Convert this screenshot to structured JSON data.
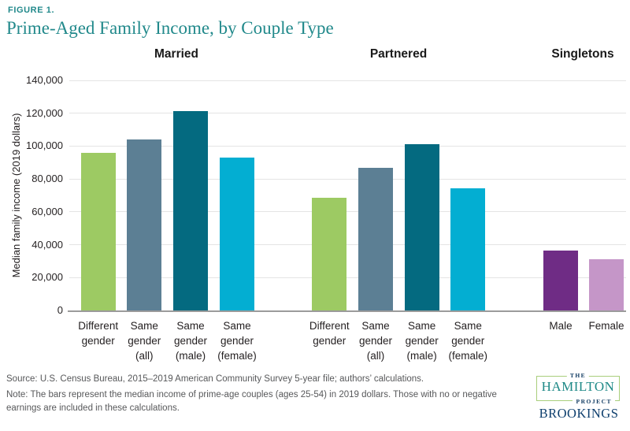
{
  "figure_label": "FIGURE 1.",
  "title": "Prime-Aged Family Income, by Couple Type",
  "chart_data": {
    "type": "bar",
    "title": "Prime-Aged Family Income, by Couple Type",
    "xlabel": "",
    "ylabel": "Median family income (2019 dollars)",
    "ylim": [
      0,
      140000
    ],
    "ytick_step": 20000,
    "ytick_labels": [
      "0",
      "20,000",
      "40,000",
      "60,000",
      "80,000",
      "100,000",
      "120,000",
      "140,000"
    ],
    "grid": "horizontal",
    "legend": "none",
    "groups": [
      {
        "name": "Married",
        "bars": [
          {
            "label": "Different\ngender",
            "value": 96000,
            "color": "#9dca63"
          },
          {
            "label": "Same\ngender\n(all)",
            "value": 104000,
            "color": "#5c7f94"
          },
          {
            "label": "Same\ngender\n(male)",
            "value": 121500,
            "color": "#046a80"
          },
          {
            "label": "Same\ngender\n(female)",
            "value": 93000,
            "color": "#03aed2"
          }
        ]
      },
      {
        "name": "Partnered",
        "bars": [
          {
            "label": "Different\ngender",
            "value": 68500,
            "color": "#9dca63"
          },
          {
            "label": "Same\ngender\n(all)",
            "value": 87000,
            "color": "#5c7f94"
          },
          {
            "label": "Same\ngender\n(male)",
            "value": 101000,
            "color": "#046a80"
          },
          {
            "label": "Same\ngender\n(female)",
            "value": 74500,
            "color": "#03aed2"
          }
        ]
      },
      {
        "name": "Singletons",
        "bars": [
          {
            "label": "Male",
            "value": 36500,
            "color": "#6f2c85"
          },
          {
            "label": "Female",
            "value": 31000,
            "color": "#c596c8"
          }
        ]
      }
    ]
  },
  "footer": {
    "source": "Source: U.S. Census Bureau, 2015–2019 American Community Survey 5-year file; authors’ calculations.",
    "note": "Note: The bars represent the median income of prime-age couples (ages 25-54) in 2019 dollars. Those with no or negative earnings are included in these calculations."
  },
  "logo": {
    "the": "THE",
    "hamilton": "HAMILTON",
    "project": "PROJECT",
    "brookings": "BROOKINGS"
  },
  "colors": {
    "accent_teal": "#21898b",
    "navy": "#0e3f6e",
    "logo_green": "#a9ce7c",
    "gridline": "#e4e4e4",
    "axis": "#9b9b9b",
    "footer_text": "#57585a"
  }
}
